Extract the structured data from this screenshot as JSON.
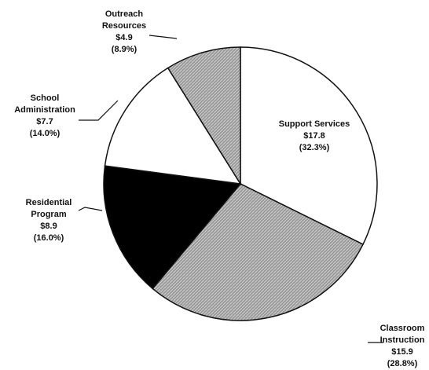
{
  "chart_data": {
    "type": "pie",
    "categories": [
      "Support Services",
      "Classroom Instruction",
      "Residential Program",
      "School Administration",
      "Outreach Resources"
    ],
    "label_lines": [
      [
        "Support Services"
      ],
      [
        "Classroom",
        "Instruction"
      ],
      [
        "Residential",
        "Program"
      ],
      [
        "School",
        "Administration"
      ],
      [
        "Outreach",
        "Resources"
      ]
    ],
    "values": [
      32.3,
      28.8,
      16.0,
      14.0,
      8.9
    ],
    "value_labels": [
      "(32.3%)",
      "(28.8%)",
      "(16.0%)",
      "(14.0%)",
      "(8.9%)"
    ],
    "amounts": [
      17.8,
      15.9,
      8.9,
      7.7,
      4.9
    ],
    "amount_labels": [
      "$17.8",
      "$15.9",
      "$8.9",
      "$7.7",
      "$4.9"
    ],
    "colors": [
      "#ffffff",
      "#a9a9a9",
      "#000000",
      "#ffffff",
      "#a9a9a9"
    ]
  }
}
